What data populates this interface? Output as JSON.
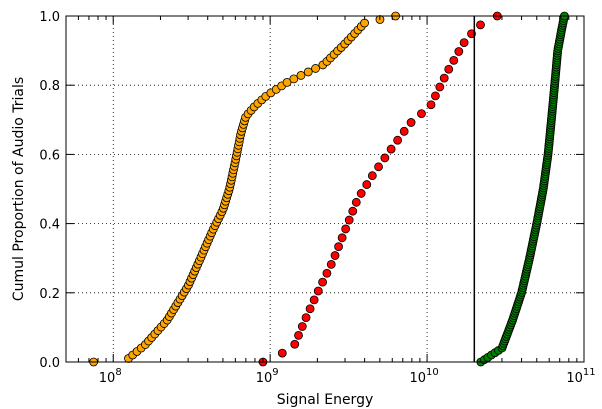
{
  "chart_data": {
    "type": "scatter",
    "title": "",
    "xlabel": "Signal Energy",
    "ylabel": "Cumul Proportion of Audio Trials",
    "x_scale": "log",
    "xlim": [
      50000000.0,
      100000000000.0
    ],
    "ylim": [
      0,
      1.0
    ],
    "x_major_ticks": [
      100000000.0,
      1000000000.0,
      10000000000.0,
      100000000000.0
    ],
    "x_tick_labels": [
      {
        "base": "10",
        "exp": "8"
      },
      {
        "base": "10",
        "exp": "9"
      },
      {
        "base": "10",
        "exp": "10"
      },
      {
        "base": "10",
        "exp": "11"
      }
    ],
    "y_ticks": [
      0.0,
      0.2,
      0.4,
      0.6,
      0.8,
      1.0
    ],
    "y_tick_labels": [
      "0.0",
      "0.2",
      "0.4",
      "0.6",
      "0.8",
      "1.0"
    ],
    "grid": true,
    "vline_x": 20000000000.0,
    "series": [
      {
        "color": "#ffa500",
        "n": 100,
        "knots": [
          [
            75000000.0,
            0.0
          ],
          [
            125000000.0,
            0.01
          ],
          [
            160000000.0,
            0.05
          ],
          [
            220000000.0,
            0.12
          ],
          [
            300000000.0,
            0.22
          ],
          [
            360000000.0,
            0.3
          ],
          [
            430000000.0,
            0.38
          ],
          [
            500000000.0,
            0.44
          ],
          [
            550000000.0,
            0.5
          ],
          [
            600000000.0,
            0.58
          ],
          [
            650000000.0,
            0.66
          ],
          [
            700000000.0,
            0.71
          ],
          [
            800000000.0,
            0.74
          ],
          [
            950000000.0,
            0.77
          ],
          [
            1300000000.0,
            0.81
          ],
          [
            1600000000.0,
            0.83
          ],
          [
            2200000000.0,
            0.86
          ],
          [
            3000000000.0,
            0.92
          ],
          [
            4000000000.0,
            0.98
          ],
          [
            6300000000.0,
            1.0
          ]
        ]
      },
      {
        "color": "#ff0000",
        "n": 40,
        "knots": [
          [
            900000000.0,
            0.0
          ],
          [
            1400000000.0,
            0.04
          ],
          [
            1700000000.0,
            0.13
          ],
          [
            2000000000.0,
            0.2
          ],
          [
            2500000000.0,
            0.29
          ],
          [
            3000000000.0,
            0.38
          ],
          [
            3600000000.0,
            0.47
          ],
          [
            4500000000.0,
            0.54
          ],
          [
            6000000000.0,
            0.62
          ],
          [
            7800000000.0,
            0.69
          ],
          [
            10500000000.0,
            0.74
          ],
          [
            13500000000.0,
            0.84
          ],
          [
            17000000000.0,
            0.92
          ],
          [
            21000000000.0,
            0.97
          ],
          [
            28000000000.0,
            1.0
          ]
        ]
      },
      {
        "color": "#008000",
        "n": 150,
        "knots": [
          [
            22000000000.0,
            0.0
          ],
          [
            30000000000.0,
            0.04
          ],
          [
            35000000000.0,
            0.12
          ],
          [
            40000000000.0,
            0.2
          ],
          [
            45000000000.0,
            0.3
          ],
          [
            50000000000.0,
            0.4
          ],
          [
            55000000000.0,
            0.5
          ],
          [
            59000000000.0,
            0.6
          ],
          [
            62000000000.0,
            0.7
          ],
          [
            65000000000.0,
            0.8
          ],
          [
            68000000000.0,
            0.9
          ],
          [
            72000000000.0,
            0.96
          ],
          [
            75000000000.0,
            1.0
          ]
        ]
      }
    ]
  }
}
